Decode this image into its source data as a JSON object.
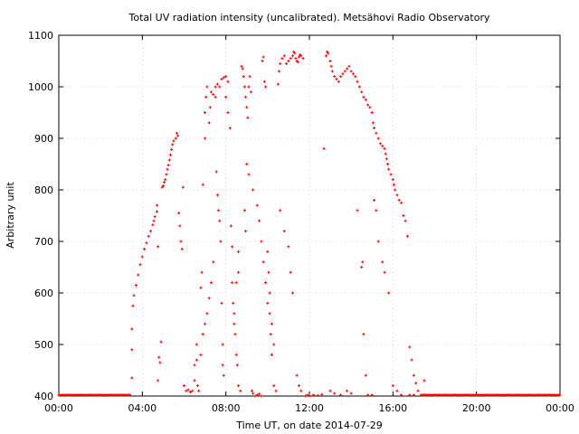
{
  "chart_data": {
    "type": "scatter",
    "title": "Total UV radiation intensity (uncalibrated). Metsähovi Radio Observatory",
    "xlabel": "Time UT, on date 2014-07-29",
    "ylabel": "Arbitrary unit",
    "xlim": [
      0,
      24
    ],
    "ylim": [
      400,
      1100
    ],
    "x_tick_values": [
      0,
      4,
      8,
      12,
      16,
      20,
      24
    ],
    "x_tick_labels": [
      "00:00",
      "04:00",
      "08:00",
      "12:00",
      "16:00",
      "20:00",
      "00:00"
    ],
    "y_ticks": [
      400,
      500,
      600,
      700,
      800,
      900,
      1000,
      1100
    ],
    "grid": true,
    "legend": "none",
    "marker_color": "#ff0000",
    "series": [
      {
        "x_unit": "hours UT",
        "points": [
          [
            0.0,
            402
          ],
          [
            0.5,
            402
          ],
          [
            1.0,
            402
          ],
          [
            1.5,
            402
          ],
          [
            2.0,
            402
          ],
          [
            2.5,
            402
          ],
          [
            3.0,
            402
          ],
          [
            3.4,
            402
          ],
          [
            3.5,
            435
          ],
          [
            3.5,
            490
          ],
          [
            3.5,
            530
          ],
          [
            3.55,
            575
          ],
          [
            3.6,
            595
          ],
          [
            3.7,
            615
          ],
          [
            3.8,
            635
          ],
          [
            3.9,
            655
          ],
          [
            4.0,
            670
          ],
          [
            4.1,
            685
          ],
          [
            4.2,
            697
          ],
          [
            4.3,
            710
          ],
          [
            4.4,
            720
          ],
          [
            4.5,
            732
          ],
          [
            4.55,
            740
          ],
          [
            4.6,
            748
          ],
          [
            4.7,
            758
          ],
          [
            4.7,
            770
          ],
          [
            4.75,
            430
          ],
          [
            4.75,
            690
          ],
          [
            4.8,
            475
          ],
          [
            4.85,
            465
          ],
          [
            4.9,
            505
          ],
          [
            4.95,
            805
          ],
          [
            5.0,
            808
          ],
          [
            5.05,
            815
          ],
          [
            5.1,
            820
          ],
          [
            5.15,
            830
          ],
          [
            5.2,
            840
          ],
          [
            5.25,
            848
          ],
          [
            5.3,
            858
          ],
          [
            5.35,
            868
          ],
          [
            5.4,
            878
          ],
          [
            5.45,
            888
          ],
          [
            5.5,
            895
          ],
          [
            5.6,
            900
          ],
          [
            5.65,
            910
          ],
          [
            5.7,
            905
          ],
          [
            5.75,
            755
          ],
          [
            5.8,
            730
          ],
          [
            5.85,
            700
          ],
          [
            5.9,
            685
          ],
          [
            5.95,
            805
          ],
          [
            6.0,
            420
          ],
          [
            6.1,
            410
          ],
          [
            6.2,
            412
          ],
          [
            6.3,
            408
          ],
          [
            6.4,
            410
          ],
          [
            6.5,
            430
          ],
          [
            6.6,
            500
          ],
          [
            6.65,
            420
          ],
          [
            6.7,
            410
          ],
          [
            6.8,
            610
          ],
          [
            6.85,
            640
          ],
          [
            6.9,
            810
          ],
          [
            7.0,
            900
          ],
          [
            7.0,
            950
          ],
          [
            7.05,
            980
          ],
          [
            7.1,
            1000
          ],
          [
            7.2,
            930
          ],
          [
            7.25,
            960
          ],
          [
            7.3,
            990
          ],
          [
            7.4,
            985
          ],
          [
            7.5,
            980
          ],
          [
            7.5,
            1000
          ],
          [
            7.6,
            1005
          ],
          [
            7.7,
            1000
          ],
          [
            7.8,
            1015
          ],
          [
            7.9,
            1018
          ],
          [
            8.0,
            1020
          ],
          [
            8.1,
            1010
          ],
          [
            7.55,
            835
          ],
          [
            7.6,
            790
          ],
          [
            7.65,
            760
          ],
          [
            7.7,
            740
          ],
          [
            7.75,
            700
          ],
          [
            7.8,
            580
          ],
          [
            7.85,
            500
          ],
          [
            7.85,
            460
          ],
          [
            7.9,
            440
          ],
          [
            8.0,
            980
          ],
          [
            8.1,
            950
          ],
          [
            8.2,
            920
          ],
          [
            8.25,
            730
          ],
          [
            8.3,
            690
          ],
          [
            8.3,
            620
          ],
          [
            8.35,
            580
          ],
          [
            8.4,
            540
          ],
          [
            8.45,
            520
          ],
          [
            8.5,
            480
          ],
          [
            8.55,
            460
          ],
          [
            8.6,
            420
          ],
          [
            8.7,
            410
          ],
          [
            8.75,
            1040
          ],
          [
            8.8,
            1035
          ],
          [
            8.85,
            1020
          ],
          [
            8.9,
            1000
          ],
          [
            8.95,
            980
          ],
          [
            9.0,
            960
          ],
          [
            9.05,
            940
          ],
          [
            9.1,
            1000
          ],
          [
            9.15,
            1020
          ],
          [
            9.2,
            990
          ],
          [
            9.25,
            410
          ],
          [
            9.3,
            405
          ],
          [
            9.4,
            400
          ],
          [
            9.5,
            402
          ],
          [
            9.6,
            404
          ],
          [
            9.7,
            400
          ],
          [
            9.75,
            1050
          ],
          [
            9.8,
            1058
          ],
          [
            9.85,
            1010
          ],
          [
            9.9,
            1000
          ],
          [
            10.0,
            680
          ],
          [
            10.05,
            640
          ],
          [
            10.1,
            600
          ],
          [
            10.15,
            520
          ],
          [
            10.2,
            480
          ],
          [
            10.3,
            420
          ],
          [
            10.4,
            410
          ],
          [
            10.5,
            1005
          ],
          [
            10.55,
            1030
          ],
          [
            10.6,
            1045
          ],
          [
            10.7,
            1055
          ],
          [
            10.8,
            1060
          ],
          [
            10.9,
            1045
          ],
          [
            11.0,
            1050
          ],
          [
            11.1,
            1055
          ],
          [
            11.2,
            1060
          ],
          [
            11.25,
            1068
          ],
          [
            11.3,
            1065
          ],
          [
            11.35,
            1055
          ],
          [
            11.4,
            1050
          ],
          [
            11.45,
            1048
          ],
          [
            11.5,
            1058
          ],
          [
            11.55,
            1062
          ],
          [
            11.6,
            1060
          ],
          [
            11.7,
            1055
          ],
          [
            11.8,
            400
          ],
          [
            11.9,
            402
          ],
          [
            12.0,
            401
          ],
          [
            12.2,
            402
          ],
          [
            12.4,
            401
          ],
          [
            12.6,
            403
          ],
          [
            12.7,
            880
          ],
          [
            12.8,
            1060
          ],
          [
            12.85,
            1068
          ],
          [
            12.9,
            1065
          ],
          [
            13.0,
            1050
          ],
          [
            13.05,
            1040
          ],
          [
            13.1,
            1030
          ],
          [
            13.2,
            1020
          ],
          [
            13.3,
            1015
          ],
          [
            13.4,
            1010
          ],
          [
            13.5,
            1020
          ],
          [
            13.6,
            1025
          ],
          [
            13.7,
            1030
          ],
          [
            13.8,
            1035
          ],
          [
            13.9,
            1040
          ],
          [
            14.0,
            1030
          ],
          [
            14.1,
            1025
          ],
          [
            14.2,
            1020
          ],
          [
            14.3,
            1010
          ],
          [
            14.4,
            1000
          ],
          [
            14.5,
            990
          ],
          [
            14.6,
            980
          ],
          [
            14.7,
            975
          ],
          [
            14.8,
            965
          ],
          [
            14.9,
            960
          ],
          [
            15.0,
            950
          ],
          [
            15.05,
            930
          ],
          [
            15.1,
            920
          ],
          [
            15.2,
            910
          ],
          [
            15.3,
            900
          ],
          [
            15.4,
            890
          ],
          [
            15.5,
            885
          ],
          [
            15.6,
            880
          ],
          [
            15.65,
            870
          ],
          [
            15.7,
            860
          ],
          [
            15.75,
            850
          ],
          [
            15.8,
            840
          ],
          [
            15.9,
            830
          ],
          [
            16.0,
            820
          ],
          [
            16.05,
            810
          ],
          [
            16.1,
            800
          ],
          [
            16.2,
            790
          ],
          [
            16.3,
            780
          ],
          [
            16.4,
            775
          ],
          [
            16.5,
            750
          ],
          [
            16.6,
            740
          ],
          [
            16.7,
            710
          ],
          [
            16.8,
            495
          ],
          [
            16.9,
            470
          ],
          [
            17.0,
            440
          ],
          [
            17.1,
            425
          ],
          [
            17.2,
            410
          ],
          [
            17.5,
            430
          ],
          [
            13.0,
            410
          ],
          [
            13.2,
            405
          ],
          [
            13.5,
            402
          ],
          [
            13.8,
            410
          ],
          [
            14.0,
            405
          ],
          [
            14.3,
            760
          ],
          [
            14.5,
            650
          ],
          [
            14.55,
            660
          ],
          [
            14.6,
            520
          ],
          [
            14.7,
            440
          ],
          [
            14.8,
            402
          ],
          [
            15.0,
            402
          ],
          [
            15.1,
            780
          ],
          [
            15.2,
            760
          ],
          [
            15.3,
            700
          ],
          [
            15.5,
            660
          ],
          [
            15.6,
            640
          ],
          [
            15.8,
            600
          ],
          [
            16.0,
            420
          ],
          [
            16.2,
            410
          ],
          [
            16.4,
            402
          ],
          [
            16.8,
            402
          ],
          [
            17.0,
            402
          ],
          [
            17.5,
            402
          ],
          [
            18.0,
            402
          ],
          [
            18.5,
            402
          ],
          [
            19.0,
            402
          ],
          [
            19.5,
            402
          ],
          [
            20.0,
            402
          ],
          [
            20.5,
            402
          ],
          [
            21.0,
            402
          ],
          [
            21.5,
            402
          ],
          [
            22.0,
            402
          ],
          [
            22.5,
            402
          ],
          [
            23.0,
            402
          ],
          [
            23.5,
            402
          ],
          [
            24.0,
            402
          ],
          [
            9.0,
            850
          ],
          [
            9.1,
            830
          ],
          [
            9.3,
            800
          ],
          [
            9.5,
            770
          ],
          [
            9.6,
            740
          ],
          [
            9.7,
            700
          ],
          [
            9.8,
            660
          ],
          [
            9.9,
            620
          ],
          [
            10.0,
            580
          ],
          [
            10.1,
            560
          ],
          [
            10.2,
            540
          ],
          [
            10.3,
            500
          ],
          [
            10.6,
            760
          ],
          [
            10.8,
            720
          ],
          [
            11.0,
            690
          ],
          [
            11.1,
            640
          ],
          [
            11.2,
            600
          ],
          [
            11.4,
            440
          ],
          [
            11.5,
            420
          ],
          [
            11.6,
            410
          ],
          [
            8.9,
            760
          ],
          [
            8.95,
            720
          ],
          [
            8.6,
            680
          ],
          [
            8.6,
            640
          ],
          [
            8.5,
            620
          ],
          [
            8.4,
            560
          ],
          [
            7.4,
            660
          ],
          [
            7.3,
            620
          ],
          [
            7.2,
            590
          ],
          [
            7.1,
            560
          ],
          [
            7.0,
            540
          ],
          [
            6.9,
            520
          ],
          [
            6.8,
            480
          ],
          [
            6.6,
            470
          ],
          [
            6.5,
            460
          ]
        ]
      }
    ]
  }
}
